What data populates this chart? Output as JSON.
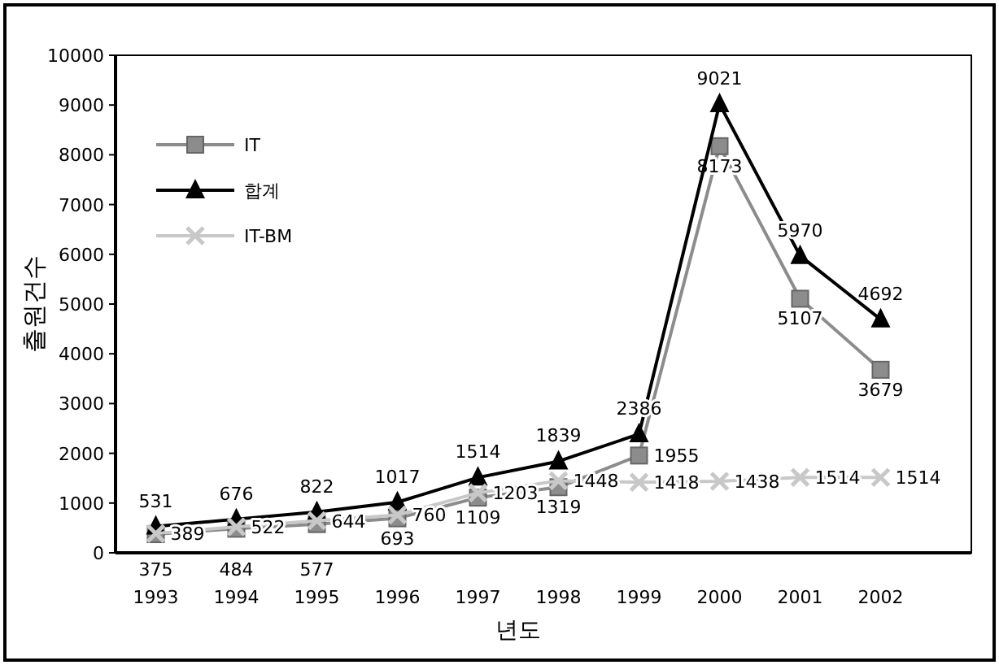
{
  "chart_data": {
    "type": "line",
    "xlabel": "년도",
    "ylabel": "출원건수",
    "categories": [
      "1993",
      "1994",
      "1995",
      "1996",
      "1997",
      "1998",
      "1999",
      "2000",
      "2001",
      "2002"
    ],
    "ylim": [
      0,
      10000
    ],
    "yticks": [
      0,
      1000,
      2000,
      3000,
      4000,
      5000,
      6000,
      7000,
      8000,
      9000,
      10000
    ],
    "grid": false,
    "legend": "top left",
    "data_labels": true,
    "series": [
      {
        "name": "IT",
        "color": "#8c8c8c",
        "marker": "square",
        "values": [
          375,
          484,
          577,
          693,
          1109,
          1319,
          1955,
          8173,
          5107,
          3679
        ]
      },
      {
        "name": "합계",
        "color": "#000000",
        "marker": "triangle",
        "values": [
          531,
          676,
          822,
          1017,
          1514,
          1839,
          2386,
          9021,
          5970,
          4692
        ]
      },
      {
        "name": "IT-BM",
        "color": "#c8c8c8",
        "marker": "cross",
        "values": [
          389,
          522,
          644,
          760,
          1203,
          1448,
          1418,
          1438,
          1514,
          1514
        ]
      }
    ]
  }
}
